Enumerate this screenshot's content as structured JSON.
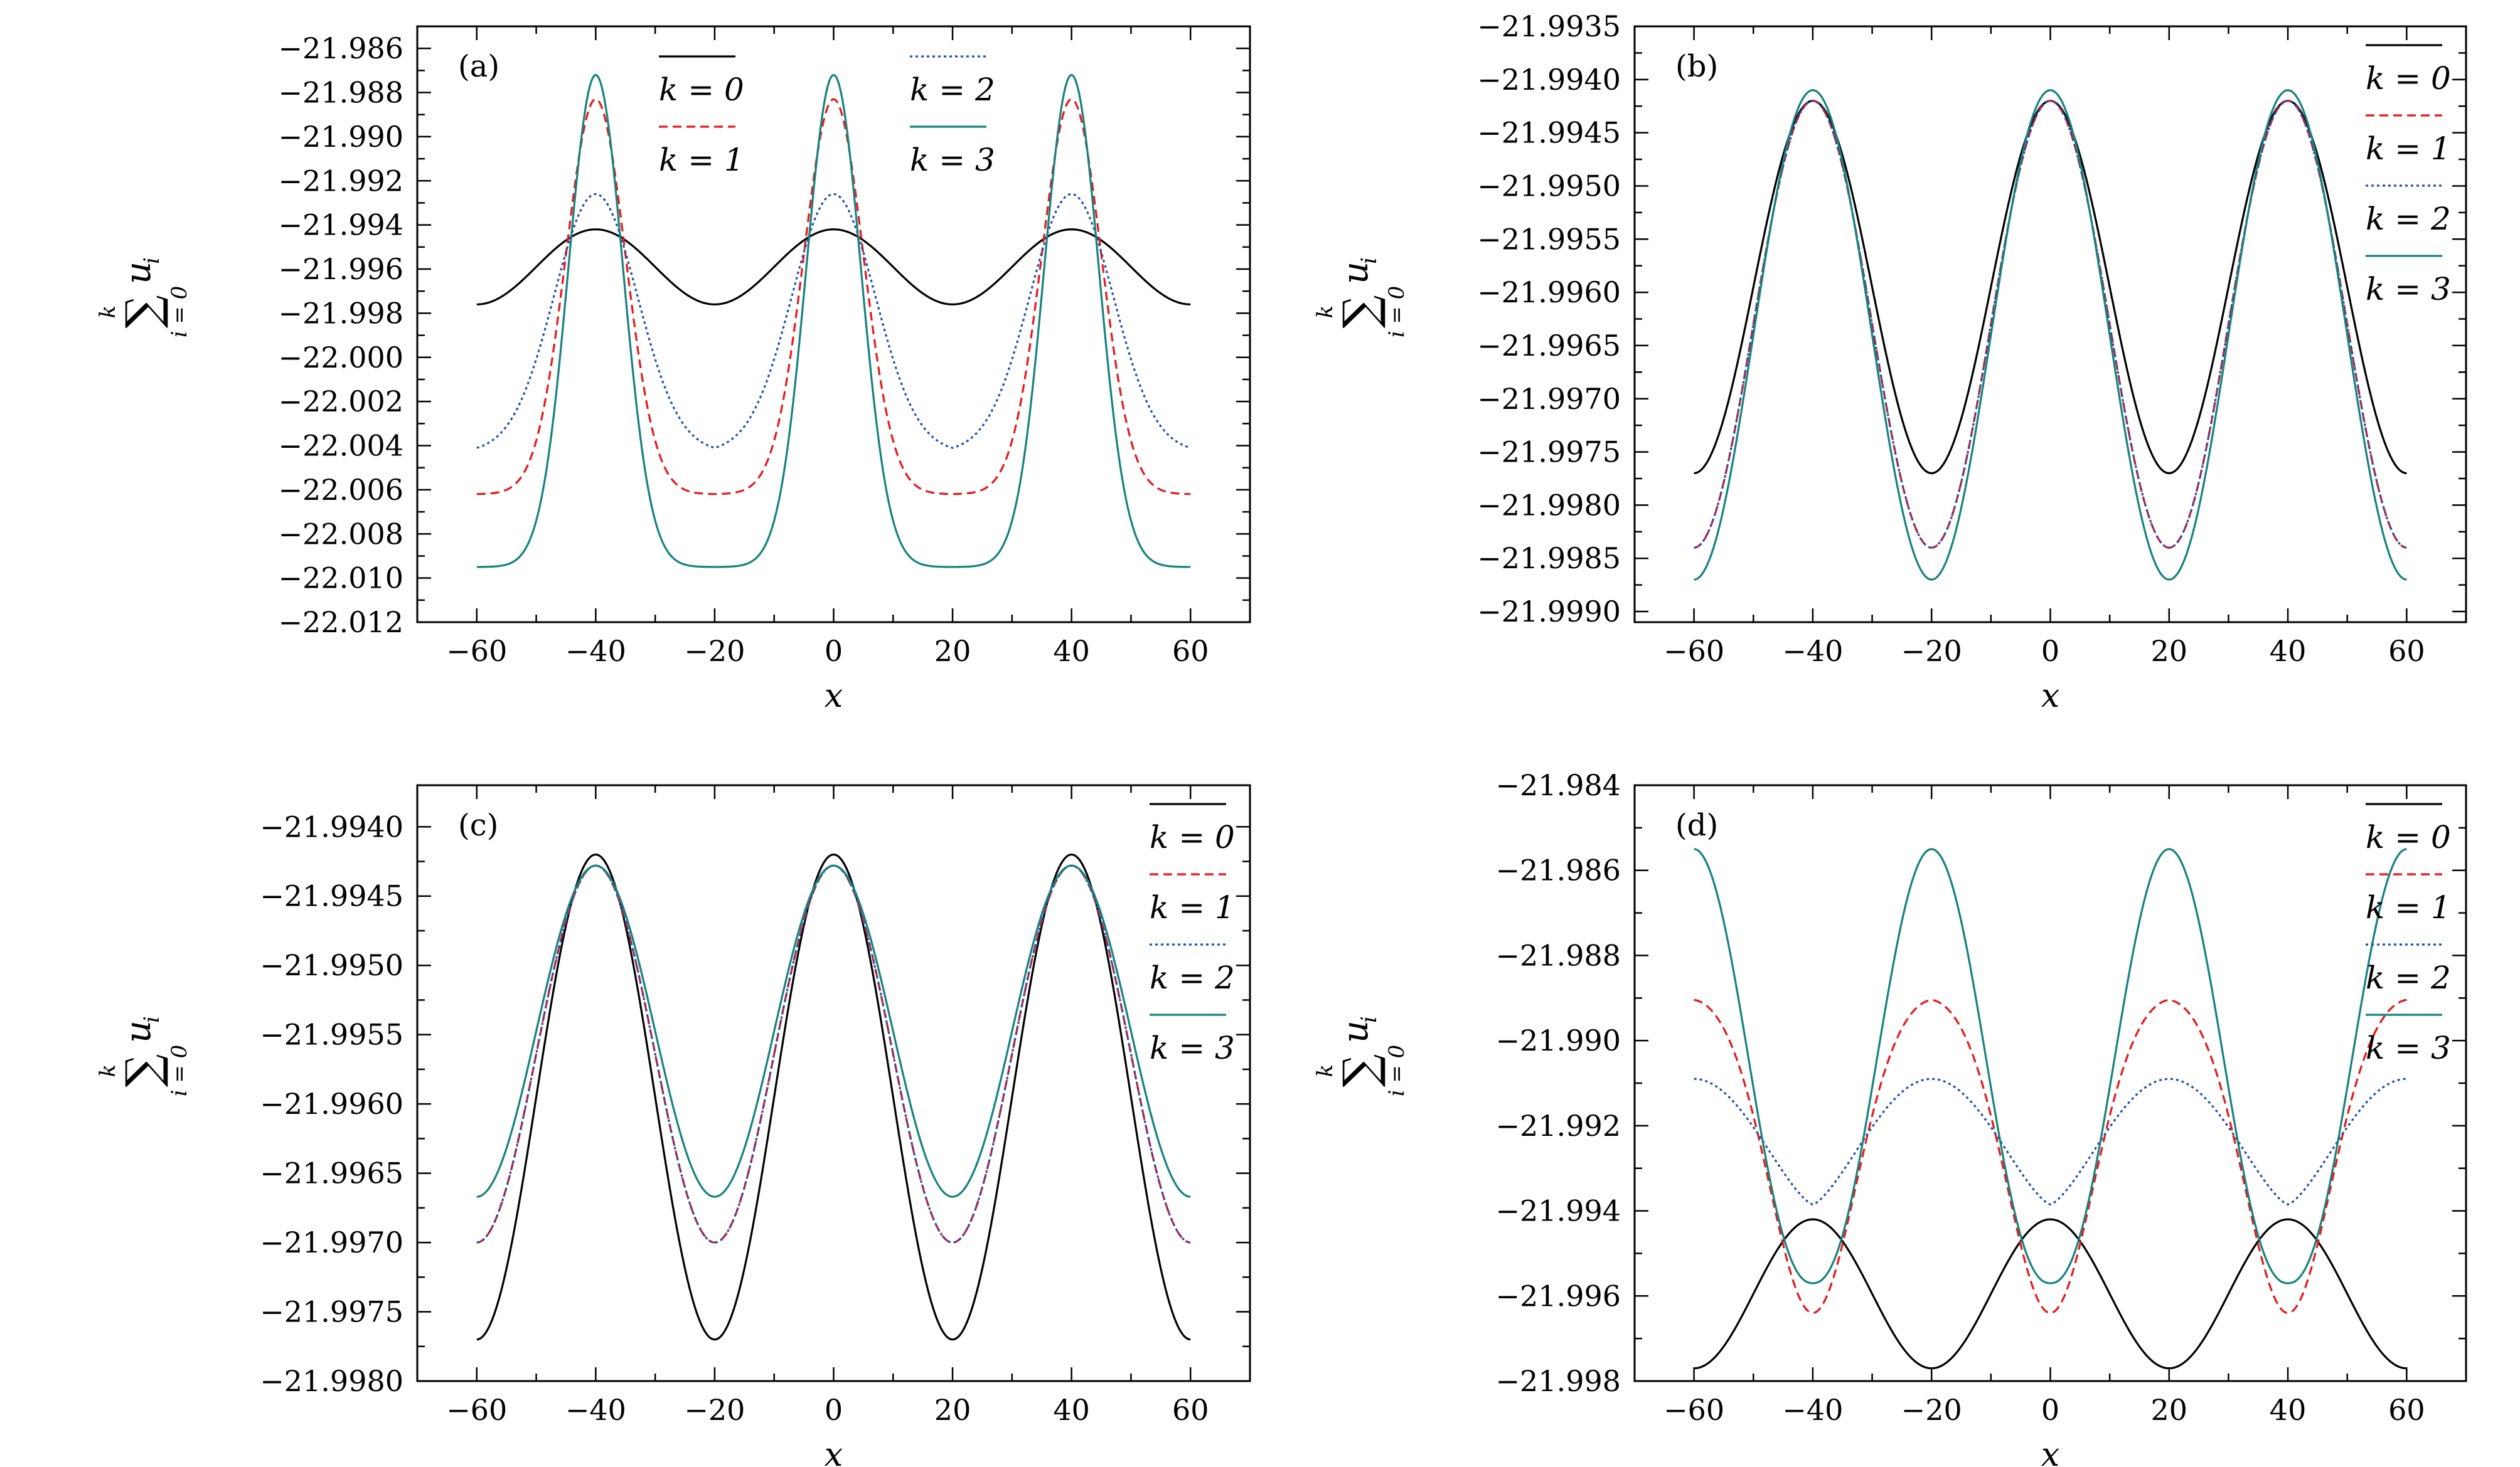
{
  "chart_data": [
    {
      "type": "line",
      "panel_label": "(a)",
      "xlabel": "x",
      "ylabel": "Σ u_i, i=0..k",
      "xlim": [
        -70,
        70
      ],
      "ylim": [
        -22.012,
        -21.985
      ],
      "xticks": [
        -60,
        -40,
        -20,
        0,
        20,
        40,
        60
      ],
      "xtick_labels": [
        "−60",
        "−40",
        "−20",
        "0",
        "20",
        "40",
        "60"
      ],
      "yticks": [
        -21.986,
        -21.988,
        -21.99,
        -21.992,
        -21.994,
        -21.996,
        -21.998,
        -22.0,
        -22.002,
        -22.004,
        -22.006,
        -22.008,
        -22.01,
        -22.012
      ],
      "ytick_labels": [
        "−21.986",
        "−21.988",
        "−21.990",
        "−21.992",
        "−21.994",
        "−21.996",
        "−21.998",
        "−22.000",
        "−22.002",
        "−22.004",
        "−22.006",
        "−22.008",
        "−22.010",
        "−22.012"
      ],
      "legend": "top (two columns)",
      "x_range": [
        -60,
        60
      ],
      "series": [
        {
          "name": "k = 0",
          "color": "#000000",
          "dash": "solid",
          "peaks_at": [
            -40,
            0,
            40
          ],
          "max": -21.9942,
          "min": -21.9976,
          "shape": "cos"
        },
        {
          "name": "k = 1",
          "color": "#e41a1c",
          "dash": "dashed",
          "peaks_at": [
            -40,
            0,
            40
          ],
          "max": -21.9883,
          "min": -22.0062,
          "shape": "peak",
          "peak_width": 5.0
        },
        {
          "name": "k = 2",
          "color": "#1f4fb0",
          "dash": "dotted",
          "peaks_at": [
            -40,
            0,
            40
          ],
          "max": -21.9926,
          "min": -22.0043,
          "shape": "peak",
          "peak_width": 7.0
        },
        {
          "name": "k = 3",
          "color": "#16827d",
          "dash": "solid",
          "peaks_at": [
            -40,
            0,
            40
          ],
          "max": -21.9872,
          "min": -22.0095,
          "shape": "peak",
          "peak_width": 4.6
        }
      ]
    },
    {
      "type": "line",
      "panel_label": "(b)",
      "xlabel": "x",
      "ylabel": "Σ u_i, i=0..k",
      "xlim": [
        -70,
        70
      ],
      "ylim": [
        -21.9991,
        -21.9935
      ],
      "xticks": [
        -60,
        -40,
        -20,
        0,
        20,
        40,
        60
      ],
      "xtick_labels": [
        "−60",
        "−40",
        "−20",
        "0",
        "20",
        "40",
        "60"
      ],
      "yticks": [
        -21.9935,
        -21.994,
        -21.9945,
        -21.995,
        -21.9955,
        -21.996,
        -21.9965,
        -21.997,
        -21.9975,
        -21.998,
        -21.9985,
        -21.999
      ],
      "ytick_labels": [
        "−21.9935",
        "−21.9940",
        "−21.9945",
        "−21.9950",
        "−21.9955",
        "−21.9960",
        "−21.9965",
        "−21.9970",
        "−21.9975",
        "−21.9980",
        "−21.9985",
        "−21.9990"
      ],
      "legend": "top-right",
      "x_range": [
        -60,
        60
      ],
      "series": [
        {
          "name": "k = 0",
          "color": "#000000",
          "dash": "solid",
          "peaks_at": [
            -40,
            0,
            40
          ],
          "max": -21.9942,
          "min": -21.9977,
          "shape": "cos"
        },
        {
          "name": "k = 1",
          "color": "#e41a1c",
          "dash": "dashed",
          "peaks_at": [
            -40,
            0,
            40
          ],
          "max": -21.9942,
          "min": -21.9984,
          "shape": "cos"
        },
        {
          "name": "k = 2",
          "color": "#1f4fb0",
          "dash": "dotted",
          "peaks_at": [
            -40,
            0,
            40
          ],
          "max": -21.9942,
          "min": -21.9984,
          "shape": "cos"
        },
        {
          "name": "k = 3",
          "color": "#16827d",
          "dash": "solid",
          "peaks_at": [
            -40,
            0,
            40
          ],
          "max": -21.9941,
          "min": -21.9987,
          "shape": "cos"
        }
      ]
    },
    {
      "type": "line",
      "panel_label": "(c)",
      "xlabel": "x",
      "ylabel": "Σ u_i, i=0..k",
      "xlim": [
        -70,
        70
      ],
      "ylim": [
        -21.998,
        -21.9937
      ],
      "xticks": [
        -60,
        -40,
        -20,
        0,
        20,
        40,
        60
      ],
      "xtick_labels": [
        "−60",
        "−40",
        "−20",
        "0",
        "20",
        "40",
        "60"
      ],
      "yticks": [
        -21.994,
        -21.9945,
        -21.995,
        -21.9955,
        -21.996,
        -21.9965,
        -21.997,
        -21.9975,
        -21.998
      ],
      "ytick_labels": [
        "−21.9940",
        "−21.9945",
        "−21.9950",
        "−21.9955",
        "−21.9960",
        "−21.9965",
        "−21.9970",
        "−21.9975",
        "−21.9980"
      ],
      "legend": "top-right",
      "x_range": [
        -60,
        60
      ],
      "series": [
        {
          "name": "k = 0",
          "color": "#000000",
          "dash": "solid",
          "peaks_at": [
            -40,
            0,
            40
          ],
          "max": -21.9942,
          "min": -21.9977,
          "shape": "cos"
        },
        {
          "name": "k = 1",
          "color": "#e41a1c",
          "dash": "dashed",
          "peaks_at": [
            -40,
            0,
            40
          ],
          "max": -21.99428,
          "min": -21.997,
          "shape": "cos"
        },
        {
          "name": "k = 2",
          "color": "#1f4fb0",
          "dash": "dotted",
          "peaks_at": [
            -40,
            0,
            40
          ],
          "max": -21.99428,
          "min": -21.997,
          "shape": "cos"
        },
        {
          "name": "k = 3",
          "color": "#16827d",
          "dash": "solid",
          "peaks_at": [
            -40,
            0,
            40
          ],
          "max": -21.99428,
          "min": -21.99667,
          "shape": "cos"
        }
      ]
    },
    {
      "type": "line",
      "panel_label": "(d)",
      "xlabel": "x",
      "ylabel": "Σ u_i, i=0..k",
      "xlim": [
        -70,
        70
      ],
      "ylim": [
        -21.998,
        -21.984
      ],
      "xticks": [
        -60,
        -40,
        -20,
        0,
        20,
        40,
        60
      ],
      "xtick_labels": [
        "−60",
        "−40",
        "−20",
        "0",
        "20",
        "40",
        "60"
      ],
      "yticks": [
        -21.984,
        -21.986,
        -21.988,
        -21.99,
        -21.992,
        -21.994,
        -21.996,
        -21.998
      ],
      "ytick_labels": [
        "−21.984",
        "−21.986",
        "−21.988",
        "−21.990",
        "−21.992",
        "−21.994",
        "−21.996",
        "−21.998"
      ],
      "legend": "top-right",
      "x_range": [
        -60,
        60
      ],
      "series": [
        {
          "name": "k = 0",
          "color": "#000000",
          "dash": "solid",
          "peaks_at": [
            -40,
            0,
            40
          ],
          "max": -21.9942,
          "min": -21.9977,
          "shape": "cos"
        },
        {
          "name": "k = 1",
          "color": "#e41a1c",
          "dash": "dashed",
          "peaks_at": [
            -60,
            -20,
            20,
            60
          ],
          "max": -21.989,
          "min": -21.9964,
          "shape": "trough",
          "trough_width": 6.5
        },
        {
          "name": "k = 2",
          "color": "#1f4fb0",
          "dash": "dotted",
          "peaks_at": [
            -60,
            -20,
            20,
            60
          ],
          "max": -21.9909,
          "min": -21.99385,
          "shape": "flat-trough"
        },
        {
          "name": "k = 3",
          "color": "#16827d",
          "dash": "solid",
          "peaks_at": [
            -60,
            -20,
            20,
            60
          ],
          "max": -21.9855,
          "min": -21.9957,
          "shape": "cos-sharp"
        }
      ]
    }
  ]
}
